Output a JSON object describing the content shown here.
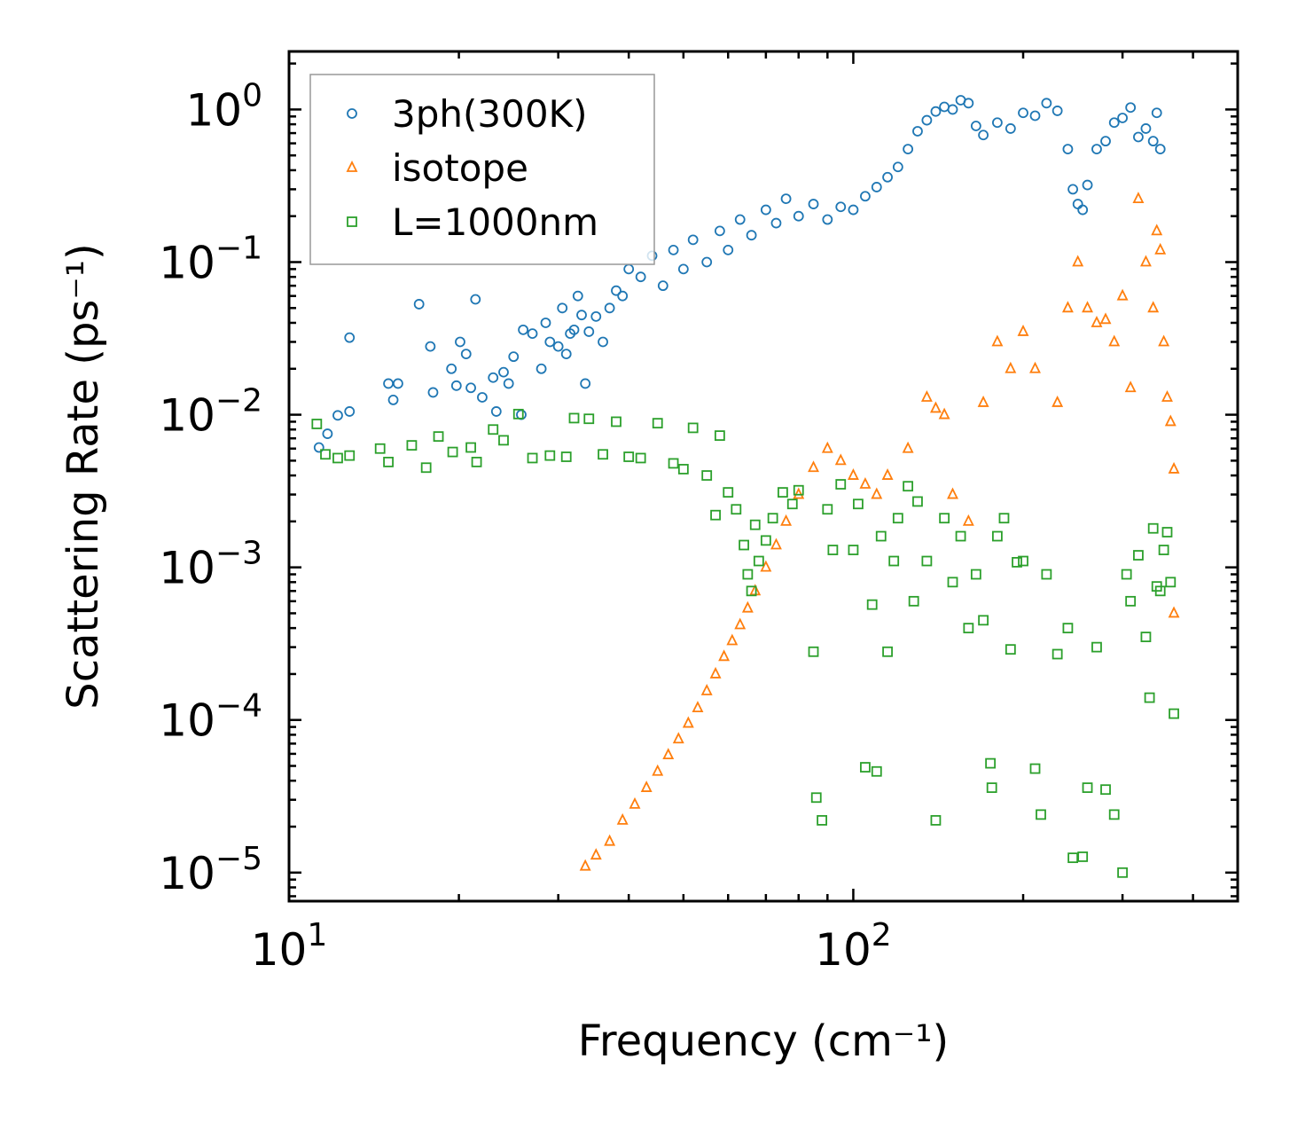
{
  "chart_data": {
    "type": "scatter",
    "xscale": "log",
    "yscale": "log",
    "xlim": [
      10,
      480
    ],
    "ylim": [
      6.5e-06,
      2.4
    ],
    "xlabel": "Frequency (cm⁻¹)",
    "ylabel": "Scattering Rate (ps⁻¹)",
    "x_ticks": [
      {
        "value": 10,
        "base": "10",
        "exp": "1"
      },
      {
        "value": 100,
        "base": "10",
        "exp": "2"
      }
    ],
    "y_ticks": [
      {
        "value": 1,
        "base": "10",
        "exp": "0"
      },
      {
        "value": 0.1,
        "base": "10",
        "exp": "−1"
      },
      {
        "value": 0.01,
        "base": "10",
        "exp": "−2"
      },
      {
        "value": 0.001,
        "base": "10",
        "exp": "−3"
      },
      {
        "value": 0.0001,
        "base": "10",
        "exp": "−4"
      },
      {
        "value": 1e-05,
        "base": "10",
        "exp": "−5"
      }
    ],
    "legend_position": "top-left",
    "series": [
      {
        "name": "3ph(300K)",
        "marker": "circle",
        "color": "#1f77b4",
        "points": [
          [
            11.3,
            0.0061
          ],
          [
            11.7,
            0.0075
          ],
          [
            12.2,
            0.0099
          ],
          [
            12.8,
            0.0105
          ],
          [
            12.8,
            0.032
          ],
          [
            15,
            0.016
          ],
          [
            15.3,
            0.0125
          ],
          [
            15.6,
            0.016
          ],
          [
            17,
            0.053
          ],
          [
            17.8,
            0.028
          ],
          [
            18,
            0.014
          ],
          [
            19.4,
            0.02
          ],
          [
            19.8,
            0.0155
          ],
          [
            20.1,
            0.03
          ],
          [
            20.6,
            0.025
          ],
          [
            21,
            0.015
          ],
          [
            21.4,
            0.057
          ],
          [
            22,
            0.013
          ],
          [
            23,
            0.0175
          ],
          [
            23.3,
            0.0105
          ],
          [
            24,
            0.019
          ],
          [
            24.5,
            0.016
          ],
          [
            25,
            0.024
          ],
          [
            25.8,
            0.01
          ],
          [
            26,
            0.036
          ],
          [
            27,
            0.034
          ],
          [
            28,
            0.02
          ],
          [
            28.5,
            0.04
          ],
          [
            29,
            0.03
          ],
          [
            30,
            0.028
          ],
          [
            30.5,
            0.05
          ],
          [
            31,
            0.025
          ],
          [
            31.5,
            0.034
          ],
          [
            32,
            0.036
          ],
          [
            32.5,
            0.06
          ],
          [
            33,
            0.045
          ],
          [
            33.5,
            0.016
          ],
          [
            34,
            0.035
          ],
          [
            35,
            0.044
          ],
          [
            36,
            0.03
          ],
          [
            37,
            0.05
          ],
          [
            38,
            0.065
          ],
          [
            39,
            0.06
          ],
          [
            40,
            0.09
          ],
          [
            42,
            0.08
          ],
          [
            44,
            0.11
          ],
          [
            46,
            0.07
          ],
          [
            48,
            0.12
          ],
          [
            50,
            0.09
          ],
          [
            52,
            0.14
          ],
          [
            55,
            0.1
          ],
          [
            58,
            0.16
          ],
          [
            60,
            0.12
          ],
          [
            63,
            0.19
          ],
          [
            66,
            0.15
          ],
          [
            70,
            0.22
          ],
          [
            73,
            0.18
          ],
          [
            76,
            0.26
          ],
          [
            80,
            0.2
          ],
          [
            85,
            0.24
          ],
          [
            90,
            0.19
          ],
          [
            95,
            0.23
          ],
          [
            100,
            0.22
          ],
          [
            105,
            0.27
          ],
          [
            110,
            0.31
          ],
          [
            115,
            0.36
          ],
          [
            120,
            0.42
          ],
          [
            125,
            0.55
          ],
          [
            130,
            0.72
          ],
          [
            135,
            0.85
          ],
          [
            140,
            0.97
          ],
          [
            145,
            1.04
          ],
          [
            150,
            1.0
          ],
          [
            155,
            1.15
          ],
          [
            160,
            1.1
          ],
          [
            165,
            0.78
          ],
          [
            170,
            0.68
          ],
          [
            180,
            0.82
          ],
          [
            190,
            0.75
          ],
          [
            200,
            0.95
          ],
          [
            210,
            0.91
          ],
          [
            220,
            1.1
          ],
          [
            230,
            0.98
          ],
          [
            240,
            0.55
          ],
          [
            245,
            0.3
          ],
          [
            250,
            0.24
          ],
          [
            255,
            0.22
          ],
          [
            260,
            0.32
          ],
          [
            270,
            0.55
          ],
          [
            280,
            0.62
          ],
          [
            290,
            0.82
          ],
          [
            300,
            0.88
          ],
          [
            310,
            1.03
          ],
          [
            320,
            0.66
          ],
          [
            330,
            0.75
          ],
          [
            340,
            0.62
          ],
          [
            345,
            0.95
          ],
          [
            350,
            0.55
          ]
        ]
      },
      {
        "name": "isotope",
        "marker": "triangle",
        "color": "#ff7f0e",
        "points": [
          [
            33.5,
            1.1e-05
          ],
          [
            35,
            1.3e-05
          ],
          [
            37,
            1.6e-05
          ],
          [
            39,
            2.2e-05
          ],
          [
            41,
            2.8e-05
          ],
          [
            43,
            3.6e-05
          ],
          [
            45,
            4.6e-05
          ],
          [
            47,
            5.9e-05
          ],
          [
            49,
            7.5e-05
          ],
          [
            51,
            9.5e-05
          ],
          [
            53,
            0.00012
          ],
          [
            55,
            0.000155
          ],
          [
            57,
            0.0002
          ],
          [
            59,
            0.00026
          ],
          [
            61,
            0.00033
          ],
          [
            63,
            0.00042
          ],
          [
            65,
            0.00054
          ],
          [
            67,
            0.0007
          ],
          [
            70,
            0.001
          ],
          [
            73,
            0.0014
          ],
          [
            76,
            0.002
          ],
          [
            80,
            0.003
          ],
          [
            85,
            0.0045
          ],
          [
            90,
            0.006
          ],
          [
            95,
            0.005
          ],
          [
            100,
            0.004
          ],
          [
            105,
            0.0035
          ],
          [
            110,
            0.003
          ],
          [
            115,
            0.004
          ],
          [
            125,
            0.006
          ],
          [
            135,
            0.013
          ],
          [
            140,
            0.011
          ],
          [
            145,
            0.01
          ],
          [
            150,
            0.003
          ],
          [
            160,
            0.002
          ],
          [
            170,
            0.012
          ],
          [
            180,
            0.03
          ],
          [
            190,
            0.02
          ],
          [
            200,
            0.035
          ],
          [
            210,
            0.02
          ],
          [
            230,
            0.012
          ],
          [
            240,
            0.05
          ],
          [
            250,
            0.1
          ],
          [
            260,
            0.05
          ],
          [
            270,
            0.04
          ],
          [
            280,
            0.042
          ],
          [
            290,
            0.03
          ],
          [
            300,
            0.06
          ],
          [
            310,
            0.015
          ],
          [
            320,
            0.26
          ],
          [
            330,
            0.1
          ],
          [
            340,
            0.05
          ],
          [
            345,
            0.16
          ],
          [
            350,
            0.12
          ],
          [
            355,
            0.03
          ],
          [
            360,
            0.013
          ],
          [
            365,
            0.009
          ],
          [
            370,
            0.0044
          ],
          [
            370,
            0.0005
          ]
        ]
      },
      {
        "name": "L=1000nm",
        "marker": "square",
        "color": "#2ca02c",
        "points": [
          [
            11.2,
            0.0087
          ],
          [
            11.6,
            0.0055
          ],
          [
            12.2,
            0.0052
          ],
          [
            12.8,
            0.0054
          ],
          [
            14.5,
            0.006
          ],
          [
            15,
            0.0049
          ],
          [
            16.5,
            0.0063
          ],
          [
            17.5,
            0.0045
          ],
          [
            18.4,
            0.0072
          ],
          [
            19.5,
            0.0057
          ],
          [
            21,
            0.0061
          ],
          [
            21.5,
            0.0049
          ],
          [
            23,
            0.008
          ],
          [
            24,
            0.0068
          ],
          [
            25.5,
            0.0101
          ],
          [
            27,
            0.0052
          ],
          [
            29,
            0.0054
          ],
          [
            31,
            0.0053
          ],
          [
            32,
            0.0095
          ],
          [
            34,
            0.0094
          ],
          [
            36,
            0.0055
          ],
          [
            38,
            0.009
          ],
          [
            40,
            0.0053
          ],
          [
            42,
            0.0052
          ],
          [
            45,
            0.0088
          ],
          [
            48,
            0.0048
          ],
          [
            50,
            0.0044
          ],
          [
            52,
            0.0082
          ],
          [
            55,
            0.004
          ],
          [
            57,
            0.0022
          ],
          [
            58,
            0.0073
          ],
          [
            60,
            0.0031
          ],
          [
            62,
            0.0024
          ],
          [
            64,
            0.0014
          ],
          [
            65,
            0.0009
          ],
          [
            66,
            0.0007
          ],
          [
            67,
            0.0019
          ],
          [
            68,
            0.0011
          ],
          [
            70,
            0.0015
          ],
          [
            72,
            0.0021
          ],
          [
            75,
            0.0031
          ],
          [
            78,
            0.0026
          ],
          [
            80,
            0.0032
          ],
          [
            85,
            0.00028
          ],
          [
            86,
            3.1e-05
          ],
          [
            88,
            2.2e-05
          ],
          [
            90,
            0.0024
          ],
          [
            92,
            0.0013
          ],
          [
            95,
            0.0035
          ],
          [
            100,
            0.0013
          ],
          [
            102,
            0.0026
          ],
          [
            105,
            4.9e-05
          ],
          [
            108,
            0.00057
          ],
          [
            110,
            4.6e-05
          ],
          [
            112,
            0.0016
          ],
          [
            115,
            0.00028
          ],
          [
            118,
            0.0011
          ],
          [
            120,
            0.0021
          ],
          [
            125,
            0.0034
          ],
          [
            128,
            0.0006
          ],
          [
            130,
            0.0027
          ],
          [
            135,
            0.0011
          ],
          [
            140,
            2.2e-05
          ],
          [
            145,
            0.0021
          ],
          [
            150,
            0.0008
          ],
          [
            155,
            0.0016
          ],
          [
            160,
            0.0004
          ],
          [
            165,
            0.0009
          ],
          [
            170,
            0.00045
          ],
          [
            175,
            5.2e-05
          ],
          [
            176,
            3.6e-05
          ],
          [
            180,
            0.0016
          ],
          [
            185,
            0.0021
          ],
          [
            190,
            0.00029
          ],
          [
            195,
            0.00108
          ],
          [
            200,
            0.0011
          ],
          [
            210,
            4.8e-05
          ],
          [
            215,
            2.4e-05
          ],
          [
            220,
            0.0009
          ],
          [
            230,
            0.00027
          ],
          [
            240,
            0.0004
          ],
          [
            245,
            1.25e-05
          ],
          [
            255,
            1.27e-05
          ],
          [
            260,
            3.6e-05
          ],
          [
            270,
            0.0003
          ],
          [
            280,
            3.5e-05
          ],
          [
            290,
            2.4e-05
          ],
          [
            300,
            1e-05
          ],
          [
            305,
            0.0009
          ],
          [
            310,
            0.0006
          ],
          [
            320,
            0.0012
          ],
          [
            330,
            0.00035
          ],
          [
            335,
            0.00014
          ],
          [
            340,
            0.0018
          ],
          [
            345,
            0.00075
          ],
          [
            350,
            0.0007
          ],
          [
            355,
            0.0013
          ],
          [
            360,
            0.0017
          ],
          [
            365,
            0.0008
          ],
          [
            370,
            0.00011
          ]
        ]
      }
    ]
  }
}
